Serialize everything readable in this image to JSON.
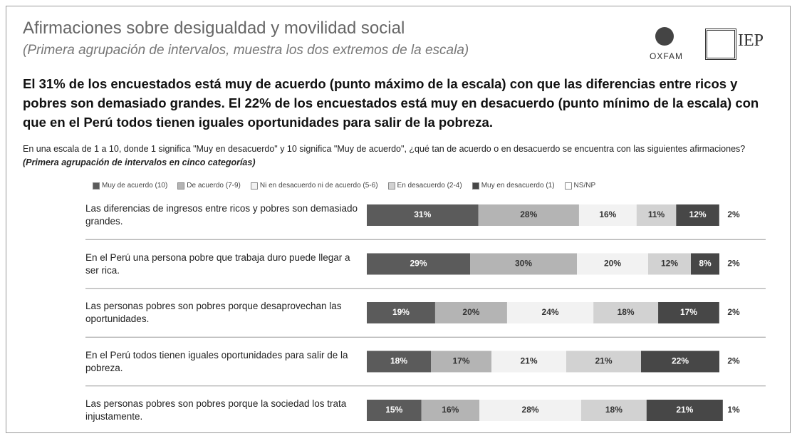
{
  "chart_data": {
    "type": "stacked_barh",
    "title": "Afirmaciones sobre desigualdad y movilidad social",
    "subtitle": "(Primera agrupación de intervalos, muestra los dos extremos de la escala)",
    "headline": "El 31% de los encuestados está muy de acuerdo (punto máximo de la escala) con que las diferencias entre ricos y pobres son demasiado grandes. El 22% de los encuestados está muy en desacuerdo (punto mínimo de la escala) con que en el Perú todos tienen iguales oportunidades para salir de la pobreza.",
    "question": "En una escala de 1 a 10, donde 1 significa \"Muy en desacuerdo\" y 10 significa \"Muy de acuerdo\", ¿qué tan de acuerdo o en desacuerdo se encuentra con las siguientes afirmaciones?",
    "question_note": "(Primera agrupación de intervalos en cinco categorías)",
    "logos": [
      "OXFAM",
      "IEP"
    ],
    "categories": [
      "Las diferencias de ingresos entre ricos y pobres son demasiado grandes.",
      "En el Perú una persona pobre que trabaja duro puede llegar a ser rica.",
      "Las personas pobres son pobres porque desaprovechan las oportunidades.",
      "En el Perú todos tienen iguales oportunidades para salir de la pobreza.",
      "Las personas pobres son pobres porque la sociedad los trata injustamente."
    ],
    "series": [
      {
        "name": "Muy de acuerdo (10)",
        "color": "#5b5b5b",
        "values": [
          31,
          29,
          19,
          18,
          15
        ],
        "value_labels": [
          "31%",
          "29%",
          "19%",
          "18%",
          "15%"
        ]
      },
      {
        "name": "De acuerdo (7-9)",
        "color": "#b4b4b4",
        "values": [
          28,
          30,
          20,
          17,
          16
        ],
        "value_labels": [
          "28%",
          "30%",
          "20%",
          "17%",
          "16%"
        ]
      },
      {
        "name": "Ni en desacuerdo ni de acuerdo (5-6)",
        "color": "#f2f2f2",
        "values": [
          16,
          20,
          24,
          21,
          28
        ],
        "value_labels": [
          "16%",
          "20%",
          "24%",
          "21%",
          "28%"
        ]
      },
      {
        "name": "En desacuerdo (2-4)",
        "color": "#d2d2d2",
        "values": [
          11,
          12,
          18,
          21,
          18
        ],
        "value_labels": [
          "11%",
          "12%",
          "18%",
          "21%",
          "18%"
        ]
      },
      {
        "name": "Muy en desacuerdo (1)",
        "color": "#474747",
        "values": [
          12,
          8,
          17,
          22,
          21
        ],
        "value_labels": [
          "12%",
          "8%",
          "17%",
          "22%",
          "21%"
        ]
      },
      {
        "name": "NS/NP",
        "color": "#ffffff",
        "values": [
          2,
          2,
          2,
          2,
          1
        ],
        "value_labels": [
          "2%",
          "2%",
          "2%",
          "2%",
          "1%"
        ]
      }
    ]
  }
}
